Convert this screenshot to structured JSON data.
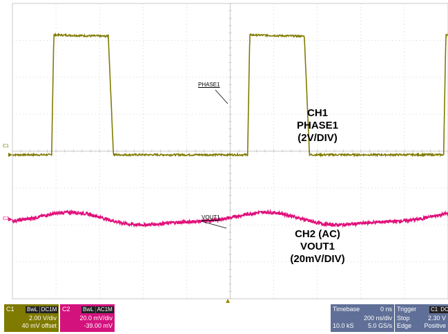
{
  "chart_data": {
    "type": "line",
    "title": "",
    "x_divisions": 10,
    "y_divisions": 8,
    "grid": true,
    "series": [
      {
        "name": "PHASE1",
        "channel": "C1",
        "color": "#7f7a00",
        "baseline_div": 3.9,
        "high_div": 7.15,
        "period_div": 4.5,
        "first_rise_div": 0.9,
        "pulse_width_div": 1.3,
        "unit": "V",
        "volts_per_div": 2
      },
      {
        "name": "VOUT1",
        "channel": "C2",
        "color": "#e0107a",
        "baseline_div": 2.15,
        "ripple_pp_div": 0.45,
        "unit": "mV",
        "volts_per_div": 20,
        "coupling": "AC"
      }
    ],
    "annotations": [
      {
        "label": "CH1",
        "lines": [
          "CH1",
          "PHASE1",
          "(2V/DIV)"
        ]
      },
      {
        "label": "CH2",
        "lines": [
          "CH2 (AC)",
          "VOUT1",
          "(20mV/DIV)"
        ]
      }
    ]
  },
  "markers": {
    "phase_tag": "PHASE1",
    "vout_tag": "VOUT1",
    "c1": "C1",
    "c2": "C2"
  },
  "ch1_panel": {
    "name": "C1",
    "tag1": "BwL",
    "tag2": "DC1M",
    "scale": "2.00 V/div",
    "offset": "40 mV offset",
    "color": "#7f7a00"
  },
  "ch2_panel": {
    "name": "C2",
    "tag1": "BwL",
    "tag2": "AC1M",
    "scale": "20.0 mV/div",
    "offset": "-39.00 mV",
    "color": "#d4127e"
  },
  "timebase": {
    "label": "Timebase",
    "delay": "0 ns",
    "scale": "200 ns/div",
    "samples": "10.0 kS",
    "rate": "5.0 GS/s"
  },
  "trigger": {
    "label": "Trigger",
    "badge1": "C1",
    "badge2": "DC",
    "mode": "Stop",
    "level": "2.30 V",
    "type": "Edge",
    "slope": "Positive"
  }
}
